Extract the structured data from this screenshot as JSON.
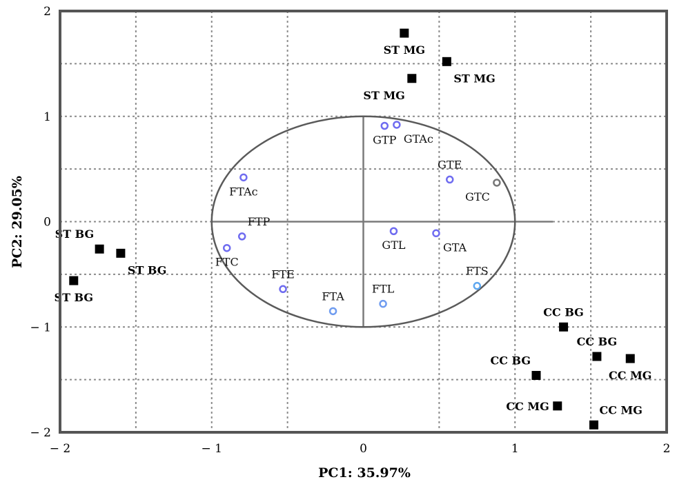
{
  "chart_data": {
    "type": "scatter",
    "title": "",
    "xlabel": "PC1: 35.97%",
    "ylabel": "PC2: 29.05%",
    "xlim": [
      -2,
      2
    ],
    "ylim": [
      -2,
      2
    ],
    "xticks": [
      {
        "value": -2,
        "label": "− 2"
      },
      {
        "value": -1,
        "label": "− 1"
      },
      {
        "value": 0,
        "label": "0"
      },
      {
        "value": 1,
        "label": "1"
      },
      {
        "value": 2,
        "label": "2"
      }
    ],
    "yticks": [
      {
        "value": 2,
        "label": "2"
      },
      {
        "value": 1,
        "label": "1"
      },
      {
        "value": 0,
        "label": "0"
      },
      {
        "value": -1,
        "label": "− 1"
      },
      {
        "value": -2,
        "label": "− 2"
      }
    ],
    "grid": true,
    "correlation_circle": {
      "cx": 0,
      "cy": 0,
      "rx": 1,
      "ry": 1
    },
    "samples": [
      {
        "label": "ST MG",
        "x": 0.27,
        "y": 1.79,
        "label_pos": "below"
      },
      {
        "label": "ST MG",
        "x": 0.55,
        "y": 1.52,
        "label_pos": "below-right"
      },
      {
        "label": "ST MG",
        "x": 0.32,
        "y": 1.36,
        "label_pos": "below-left"
      },
      {
        "label": "ST BG",
        "x": -1.74,
        "y": -0.26,
        "label_pos": "above-left"
      },
      {
        "label": "ST BG",
        "x": -1.6,
        "y": -0.3,
        "label_pos": "below-right"
      },
      {
        "label": "ST BG",
        "x": -1.91,
        "y": -0.56,
        "label_pos": "below"
      },
      {
        "label": "CC BG",
        "x": 1.32,
        "y": -1.0,
        "label_pos": "above"
      },
      {
        "label": "CC BG",
        "x": 1.54,
        "y": -1.28,
        "label_pos": "above"
      },
      {
        "label": "CC MG",
        "x": 1.76,
        "y": -1.3,
        "label_pos": "below"
      },
      {
        "label": "CC BG",
        "x": 1.14,
        "y": -1.46,
        "label_pos": "above-left"
      },
      {
        "label": "CC MG",
        "x": 1.28,
        "y": -1.75,
        "label_pos": "left"
      },
      {
        "label": "CC MG",
        "x": 1.52,
        "y": -1.93,
        "label_pos": "above-right"
      }
    ],
    "variables": [
      {
        "label": "GTP",
        "x": 0.14,
        "y": 0.91,
        "label_pos": "below",
        "color": "#6f6cf0"
      },
      {
        "label": "GTAc",
        "x": 0.22,
        "y": 0.92,
        "label_pos": "below-right",
        "color": "#6f6cf0"
      },
      {
        "label": "GTE",
        "x": 0.57,
        "y": 0.4,
        "label_pos": "above",
        "color": "#6f6cf0"
      },
      {
        "label": "GTC",
        "x": 0.88,
        "y": 0.37,
        "label_pos": "below-left",
        "color": "#777777"
      },
      {
        "label": "FTAc",
        "x": -0.79,
        "y": 0.42,
        "label_pos": "below",
        "color": "#6f6cf0"
      },
      {
        "label": "FTP",
        "x": -0.8,
        "y": -0.14,
        "label_pos": "above-right",
        "color": "#6f6cf0"
      },
      {
        "label": "FTC",
        "x": -0.9,
        "y": -0.25,
        "label_pos": "below",
        "color": "#6f6cf0"
      },
      {
        "label": "GTL",
        "x": 0.2,
        "y": -0.09,
        "label_pos": "below",
        "color": "#6f6cf0"
      },
      {
        "label": "GTA",
        "x": 0.48,
        "y": -0.11,
        "label_pos": "below-right",
        "color": "#6f6cf0"
      },
      {
        "label": "FTE",
        "x": -0.53,
        "y": -0.64,
        "label_pos": "above",
        "color": "#6f6cf0"
      },
      {
        "label": "FTA",
        "x": -0.2,
        "y": -0.85,
        "label_pos": "above",
        "color": "#6f9cf0"
      },
      {
        "label": "FTL",
        "x": 0.13,
        "y": -0.78,
        "label_pos": "above",
        "color": "#6f9cf0"
      },
      {
        "label": "FTS",
        "x": 0.75,
        "y": -0.61,
        "label_pos": "above",
        "color": "#5fa8f0"
      }
    ],
    "colors": {
      "sample_marker": "#000000",
      "variable_marker": "#6f6cf0"
    }
  }
}
